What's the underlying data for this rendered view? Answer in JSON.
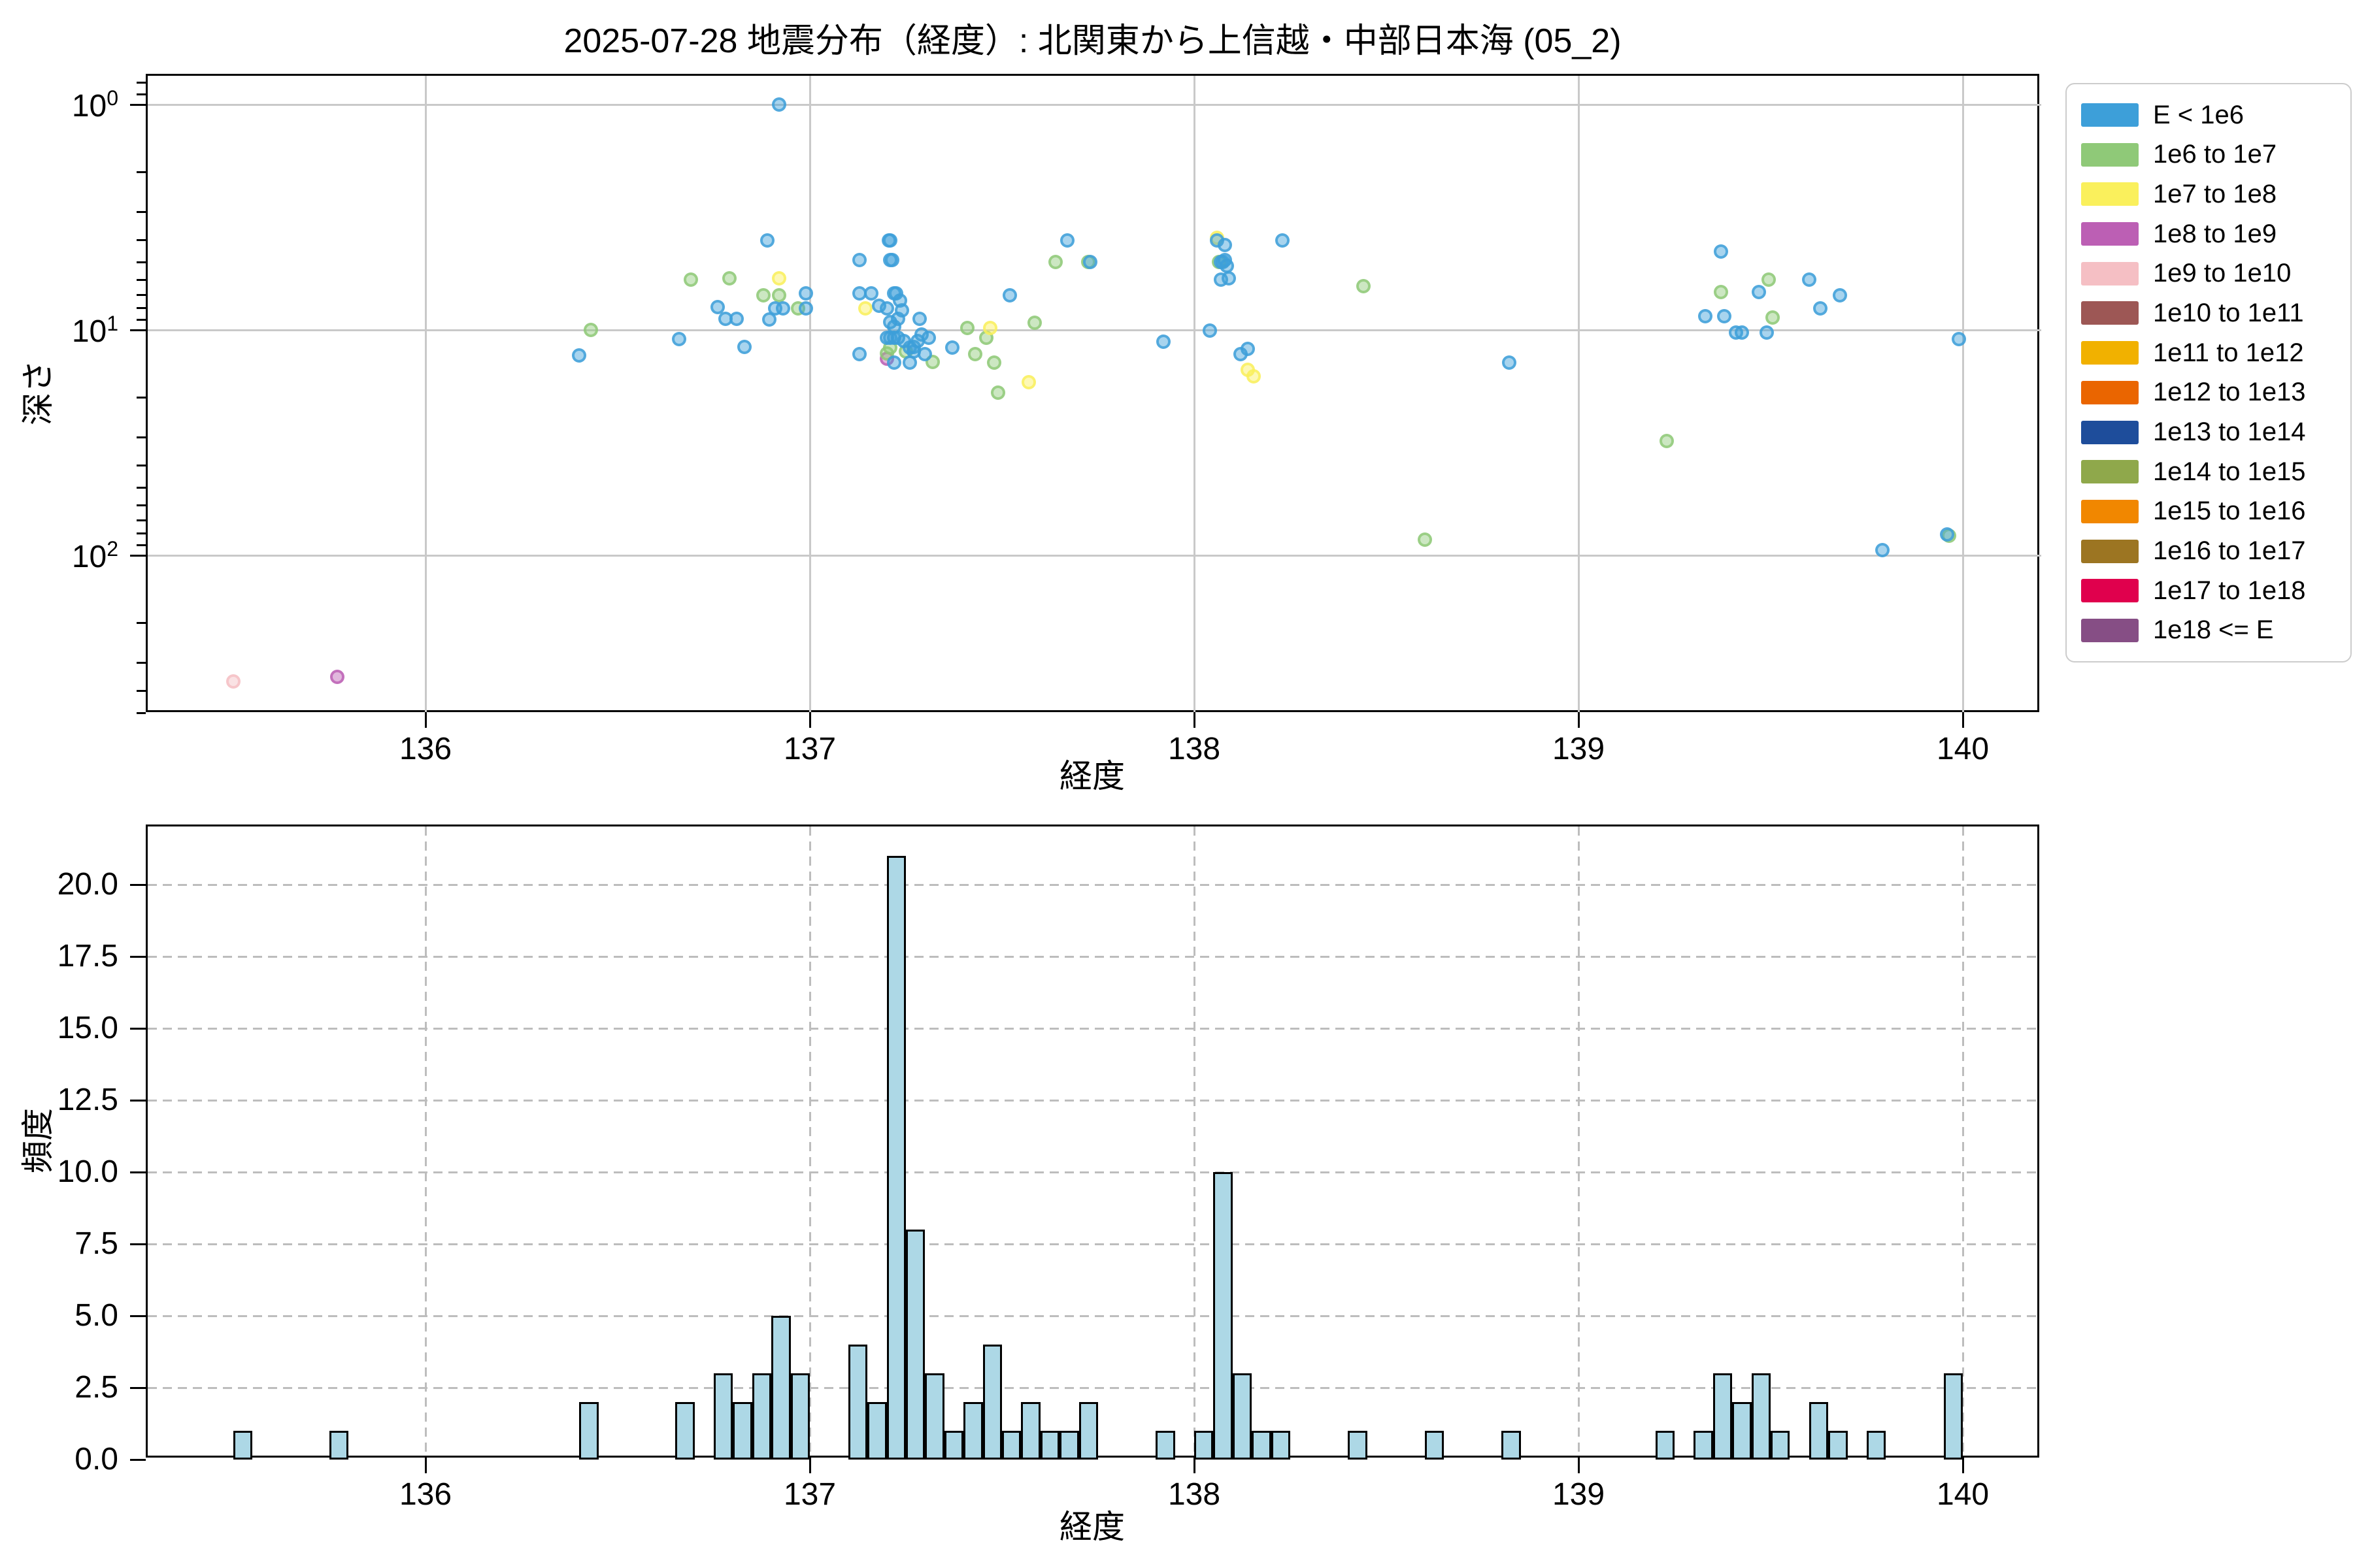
{
  "title": "2025-07-28 地震分布（経度）: 北関東から上信越・中部日本海 (05_2)",
  "colors": {
    "background": "#ffffff",
    "histogram_bar": "#ADD8E6",
    "histogram_bar_edge": "#000000",
    "scatter_grid": "#c9c9c9",
    "hist_grid": "#bdbdbd",
    "legend_border": "#cccccc",
    "spine": "#000000"
  },
  "legend": {
    "items": [
      {
        "label": "E < 1e6",
        "color": "#3D9FD9"
      },
      {
        "label": "1e6 to 1e7",
        "color": "#8FC978"
      },
      {
        "label": "1e7 to 1e8",
        "color": "#FAF05C"
      },
      {
        "label": "1e8 to 1e9",
        "color": "#BC5FB4"
      },
      {
        "label": "1e9 to 1e10",
        "color": "#F5BFC4"
      },
      {
        "label": "1e10 to 1e11",
        "color": "#9D5755"
      },
      {
        "label": "1e11 to 1e12",
        "color": "#F1B100"
      },
      {
        "label": "1e12 to 1e13",
        "color": "#EA6500"
      },
      {
        "label": "1e13 to 1e14",
        "color": "#1E4D9B"
      },
      {
        "label": "1e14 to 1e15",
        "color": "#8FA84B"
      },
      {
        "label": "1e15 to 1e16",
        "color": "#F18700"
      },
      {
        "label": "1e16 to 1e17",
        "color": "#9C7522"
      },
      {
        "label": "1e17 to 1e18",
        "color": "#E0004D"
      },
      {
        "label": "1e18 <= E",
        "color": "#864E85"
      }
    ]
  },
  "chart_data": [
    {
      "type": "scatter",
      "title": "2025-07-28 地震分布（経度）: 北関東から上信越・中部日本海 (05_2)",
      "xlabel": "経度",
      "ylabel": "深さ",
      "xlim": [
        135.28,
        140.22
      ],
      "ylim_depth": [
        0.75,
        500
      ],
      "yscale": "log, inverted (depth increases downward)",
      "xticks": [
        136,
        137,
        138,
        139,
        140
      ],
      "ytick_exponents": [
        0,
        1,
        2
      ],
      "grid": "solid gray, major only",
      "legend_position": "outside upper right",
      "series": [
        {
          "name": "E < 1e6",
          "color": "#3D9FD9",
          "points": [
            [
              136.4,
              13.0
            ],
            [
              136.66,
              11.0
            ],
            [
              136.76,
              7.9
            ],
            [
              136.78,
              8.9
            ],
            [
              136.81,
              8.9
            ],
            [
              136.83,
              11.9
            ],
            [
              136.89,
              4.0
            ],
            [
              136.895,
              9.0
            ],
            [
              136.92,
              1.0
            ],
            [
              136.91,
              8.0
            ],
            [
              136.93,
              8.0
            ],
            [
              136.99,
              6.9
            ],
            [
              136.99,
              8.0
            ],
            [
              137.13,
              4.9
            ],
            [
              137.13,
              6.9
            ],
            [
              137.13,
              12.8
            ],
            [
              137.16,
              6.9
            ],
            [
              137.18,
              7.8
            ],
            [
              137.205,
              4.0
            ],
            [
              137.21,
              4.0
            ],
            [
              137.21,
              4.9
            ],
            [
              137.215,
              4.9
            ],
            [
              137.22,
              6.9
            ],
            [
              137.225,
              6.9
            ],
            [
              137.2,
              8.0
            ],
            [
              137.23,
              8.9
            ],
            [
              137.22,
              9.7
            ],
            [
              137.2,
              10.8
            ],
            [
              137.21,
              10.8
            ],
            [
              137.22,
              10.8
            ],
            [
              137.23,
              10.8
            ],
            [
              137.22,
              14.0
            ],
            [
              137.235,
              7.4
            ],
            [
              137.24,
              8.2
            ],
            [
              137.21,
              9.2
            ],
            [
              137.245,
              11.2
            ],
            [
              137.26,
              12.0
            ],
            [
              137.27,
              11.9
            ],
            [
              137.27,
              12.5
            ],
            [
              137.26,
              14.0
            ],
            [
              137.29,
              10.5
            ],
            [
              137.28,
              11.2
            ],
            [
              137.285,
              8.9
            ],
            [
              137.3,
              12.8
            ],
            [
              137.31,
              10.8
            ],
            [
              137.37,
              12.0
            ],
            [
              137.52,
              7.0
            ],
            [
              137.67,
              4.0
            ],
            [
              137.73,
              5.0
            ],
            [
              137.92,
              11.3
            ],
            [
              138.04,
              10.1
            ],
            [
              138.06,
              4.0
            ],
            [
              138.07,
              5.0
            ],
            [
              138.075,
              5.0
            ],
            [
              138.07,
              6.0
            ],
            [
              138.08,
              4.9
            ],
            [
              138.085,
              5.2
            ],
            [
              138.08,
              4.2
            ],
            [
              138.09,
              5.9
            ],
            [
              138.14,
              12.1
            ],
            [
              138.12,
              12.8
            ],
            [
              138.23,
              4.0
            ],
            [
              138.82,
              14.0
            ],
            [
              139.33,
              8.7
            ],
            [
              139.37,
              4.5
            ],
            [
              139.38,
              8.7
            ],
            [
              139.41,
              10.3
            ],
            [
              139.425,
              10.3
            ],
            [
              139.47,
              6.8
            ],
            [
              139.49,
              10.3
            ],
            [
              139.6,
              6.0
            ],
            [
              139.63,
              8.0
            ],
            [
              139.68,
              7.0
            ],
            [
              139.79,
              95
            ],
            [
              139.96,
              81
            ],
            [
              139.99,
              11
            ]
          ]
        },
        {
          "name": "1e6 to 1e7",
          "color": "#8FC978",
          "points": [
            [
              136.43,
              10.0
            ],
            [
              136.69,
              6.0
            ],
            [
              136.79,
              5.9
            ],
            [
              136.88,
              7.0
            ],
            [
              136.92,
              7.0
            ],
            [
              136.97,
              8.0
            ],
            [
              137.2,
              12.7
            ],
            [
              137.21,
              12.0
            ],
            [
              137.25,
              12.5
            ],
            [
              137.32,
              13.9
            ],
            [
              137.41,
              9.8
            ],
            [
              137.43,
              12.8
            ],
            [
              137.46,
              10.8
            ],
            [
              137.48,
              14.0
            ],
            [
              137.49,
              19.0
            ],
            [
              137.585,
              9.3
            ],
            [
              137.64,
              5.0
            ],
            [
              137.725,
              5.0
            ],
            [
              138.065,
              5.0
            ],
            [
              138.44,
              6.4
            ],
            [
              138.6,
              85
            ],
            [
              139.23,
              31
            ],
            [
              139.37,
              6.8
            ],
            [
              139.495,
              6.0
            ],
            [
              139.505,
              8.8
            ],
            [
              139.965,
              82
            ]
          ]
        },
        {
          "name": "1e7 to 1e8",
          "color": "#FAF05C",
          "points": [
            [
              136.92,
              5.9
            ],
            [
              137.145,
              8.0
            ],
            [
              137.47,
              9.8
            ],
            [
              137.57,
              17.0
            ],
            [
              138.06,
              3.9
            ],
            [
              138.14,
              15.0
            ],
            [
              138.155,
              16.1
            ]
          ]
        },
        {
          "name": "1e8 to 1e9",
          "color": "#BC5FB4",
          "points": [
            [
              135.77,
              346
            ],
            [
              137.2,
              13.4
            ]
          ]
        },
        {
          "name": "1e9 to 1e10",
          "color": "#F5BFC4",
          "points": [
            [
              135.5,
              363
            ]
          ]
        },
        {
          "name": "1e10 to 1e11",
          "color": "#9D5755",
          "points": []
        },
        {
          "name": "1e11 to 1e12",
          "color": "#F1B100",
          "points": []
        },
        {
          "name": "1e12 to 1e13",
          "color": "#EA6500",
          "points": []
        },
        {
          "name": "1e13 to 1e14",
          "color": "#1E4D9B",
          "points": []
        },
        {
          "name": "1e14 to 1e15",
          "color": "#8FA84B",
          "points": []
        },
        {
          "name": "1e15 to 1e16",
          "color": "#F18700",
          "points": []
        },
        {
          "name": "1e16 to 1e17",
          "color": "#9C7522",
          "points": []
        },
        {
          "name": "1e17 to 1e18",
          "color": "#E0004D",
          "points": []
        },
        {
          "name": "1e18 <= E",
          "color": "#864E85",
          "points": []
        }
      ]
    },
    {
      "type": "histogram",
      "xlabel": "経度",
      "ylabel": "頻度",
      "xlim": [
        135.28,
        140.22
      ],
      "ylim": [
        0,
        22
      ],
      "xticks": [
        136,
        137,
        138,
        139,
        140
      ],
      "yticks": [
        0.0,
        2.5,
        5.0,
        7.5,
        10.0,
        12.5,
        15.0,
        17.5,
        20.0
      ],
      "ytick_labels": [
        "0.0",
        "2.5",
        "5.0",
        "7.5",
        "10.0",
        "12.5",
        "15.0",
        "17.5",
        "20.0"
      ],
      "grid": "dashed gray, both axes",
      "bin_width": 0.05,
      "bins": [
        {
          "x": 135.5,
          "count": 1
        },
        {
          "x": 135.75,
          "count": 1
        },
        {
          "x": 136.4,
          "count": 2
        },
        {
          "x": 136.65,
          "count": 2
        },
        {
          "x": 136.75,
          "count": 3
        },
        {
          "x": 136.8,
          "count": 2
        },
        {
          "x": 136.85,
          "count": 3
        },
        {
          "x": 136.9,
          "count": 5
        },
        {
          "x": 136.95,
          "count": 3
        },
        {
          "x": 137.1,
          "count": 4
        },
        {
          "x": 137.15,
          "count": 2
        },
        {
          "x": 137.2,
          "count": 21
        },
        {
          "x": 137.25,
          "count": 8
        },
        {
          "x": 137.3,
          "count": 3
        },
        {
          "x": 137.35,
          "count": 1
        },
        {
          "x": 137.4,
          "count": 2
        },
        {
          "x": 137.45,
          "count": 4
        },
        {
          "x": 137.5,
          "count": 1
        },
        {
          "x": 137.55,
          "count": 2
        },
        {
          "x": 137.6,
          "count": 1
        },
        {
          "x": 137.65,
          "count": 1
        },
        {
          "x": 137.7,
          "count": 2
        },
        {
          "x": 137.9,
          "count": 1
        },
        {
          "x": 138.0,
          "count": 1
        },
        {
          "x": 138.05,
          "count": 10
        },
        {
          "x": 138.1,
          "count": 3
        },
        {
          "x": 138.15,
          "count": 1
        },
        {
          "x": 138.2,
          "count": 1
        },
        {
          "x": 138.4,
          "count": 1
        },
        {
          "x": 138.6,
          "count": 1
        },
        {
          "x": 138.8,
          "count": 1
        },
        {
          "x": 139.2,
          "count": 1
        },
        {
          "x": 139.3,
          "count": 1
        },
        {
          "x": 139.35,
          "count": 3
        },
        {
          "x": 139.4,
          "count": 2
        },
        {
          "x": 139.45,
          "count": 3
        },
        {
          "x": 139.5,
          "count": 1
        },
        {
          "x": 139.6,
          "count": 2
        },
        {
          "x": 139.65,
          "count": 1
        },
        {
          "x": 139.75,
          "count": 1
        },
        {
          "x": 139.95,
          "count": 3
        }
      ]
    }
  ]
}
